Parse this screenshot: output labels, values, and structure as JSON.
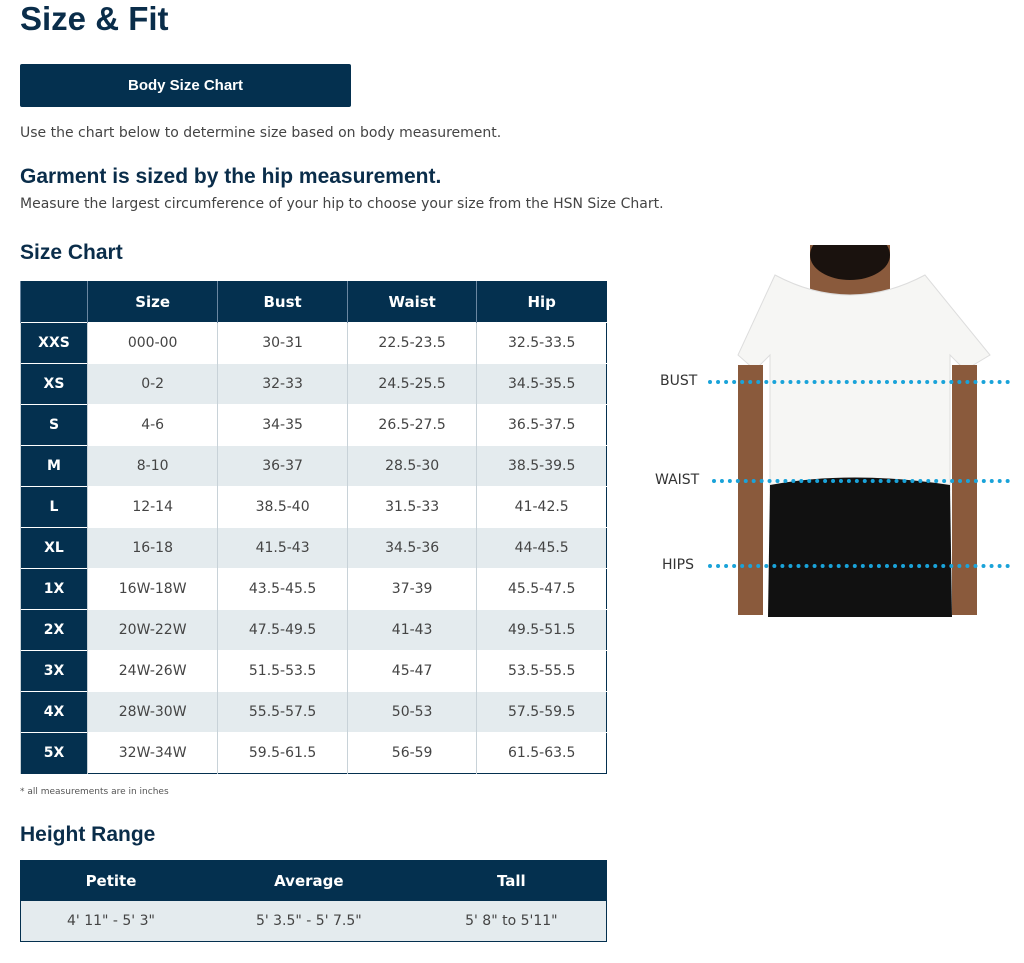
{
  "title": "Size & Fit",
  "button": "Body Size Chart",
  "intro": "Use the chart below to determine size based on body measurement.",
  "garment_heading": "Garment is sized by the hip measurement.",
  "garment_text": "Measure the largest circumference of your hip to choose your size from the HSN Size Chart.",
  "size_chart": {
    "heading": "Size Chart",
    "columns": [
      "",
      "Size",
      "Bust",
      "Waist",
      "Hip"
    ],
    "rows": [
      [
        "XXS",
        "000-00",
        "30-31",
        "22.5-23.5",
        "32.5-33.5"
      ],
      [
        "XS",
        "0-2",
        "32-33",
        "24.5-25.5",
        "34.5-35.5"
      ],
      [
        "S",
        "4-6",
        "34-35",
        "26.5-27.5",
        "36.5-37.5"
      ],
      [
        "M",
        "8-10",
        "36-37",
        "28.5-30",
        "38.5-39.5"
      ],
      [
        "L",
        "12-14",
        "38.5-40",
        "31.5-33",
        "41-42.5"
      ],
      [
        "XL",
        "16-18",
        "41.5-43",
        "34.5-36",
        "44-45.5"
      ],
      [
        "1X",
        "16W-18W",
        "43.5-45.5",
        "37-39",
        "45.5-47.5"
      ],
      [
        "2X",
        "20W-22W",
        "47.5-49.5",
        "41-43",
        "49.5-51.5"
      ],
      [
        "3X",
        "24W-26W",
        "51.5-53.5",
        "45-47",
        "53.5-55.5"
      ],
      [
        "4X",
        "28W-30W",
        "55.5-57.5",
        "50-53",
        "57.5-59.5"
      ],
      [
        "5X",
        "32W-34W",
        "59.5-61.5",
        "56-59",
        "61.5-63.5"
      ]
    ],
    "note": "* all measurements are in inches"
  },
  "height_range": {
    "heading": "Height Range",
    "columns": [
      "Petite",
      "Average",
      "Tall"
    ],
    "values": [
      "4' 11\" - 5' 3\"",
      "5' 3.5\" - 5' 7.5\"",
      "5' 8\" to 5'11\""
    ]
  },
  "figure": {
    "labels": [
      "BUST",
      "WAIST",
      "HIPS"
    ],
    "line_color": "#1aa3d9"
  },
  "colors": {
    "navy": "#04304f",
    "row_alt": "#e4ebee"
  }
}
